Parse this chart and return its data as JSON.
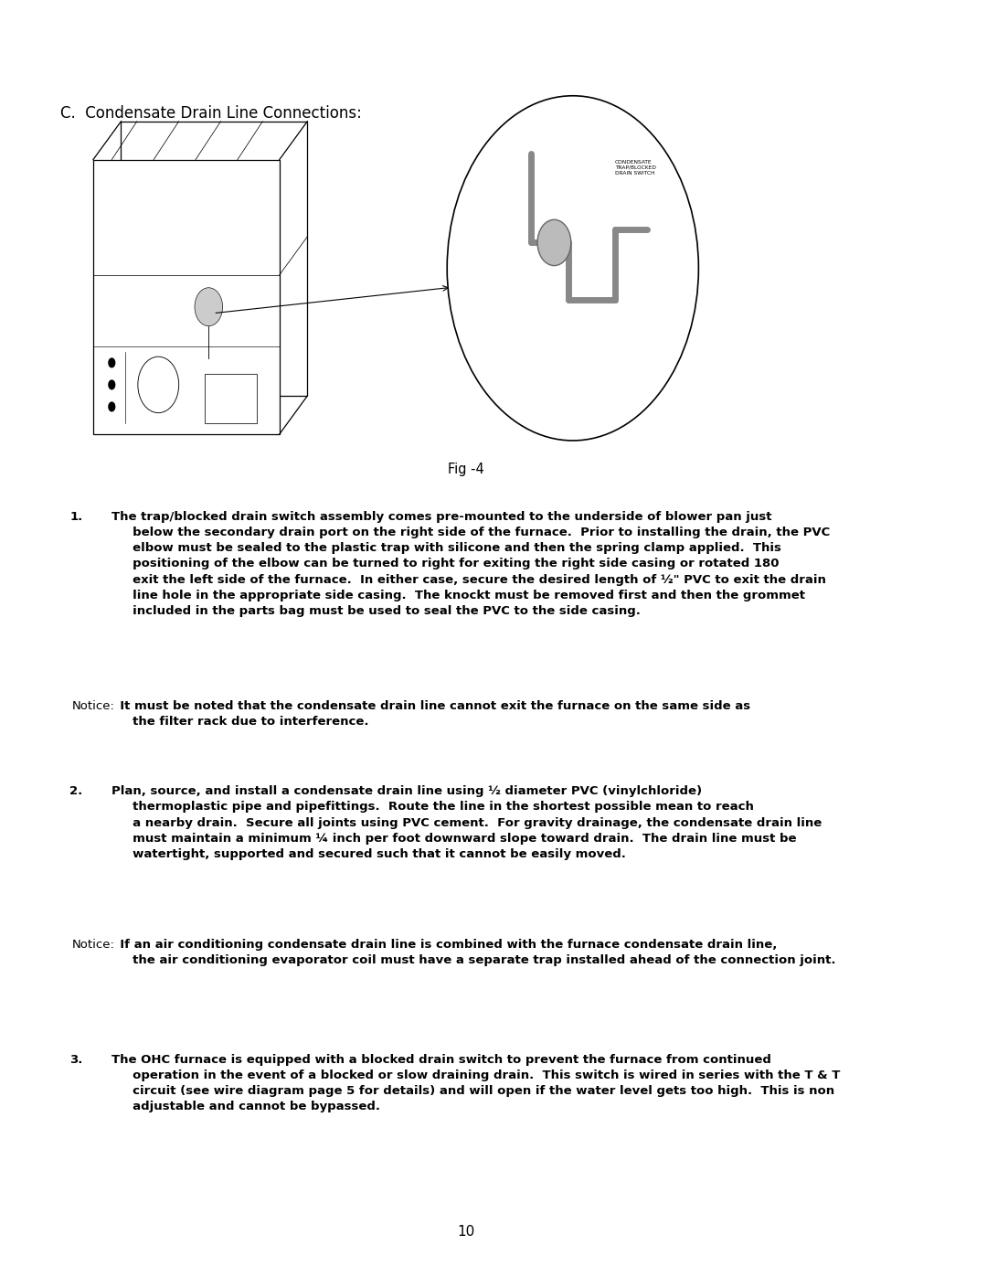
{
  "bg_color": "#ffffff",
  "page_width": 10.8,
  "page_height": 13.97,
  "section_title": "C.  Condensate Drain Line Connections:",
  "fig_label": "Fig -4",
  "page_number": "10",
  "condensate_label": "CONDENSATE\nTRAP/BLOCKED\nDRAIN SWITCH"
}
